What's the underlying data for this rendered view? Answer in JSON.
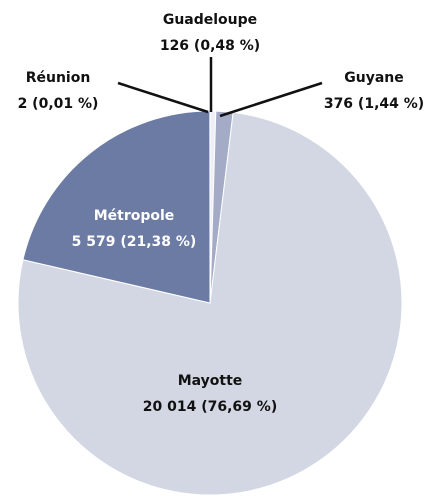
{
  "chart_data": {
    "type": "pie",
    "categories": [
      "Guadeloupe",
      "Guyane",
      "Mayotte",
      "Métropole",
      "Réunion"
    ],
    "values": [
      126,
      376,
      20014,
      5579,
      2
    ],
    "value_labels": [
      "126 (0,48 %)",
      "376 (1,44 %)",
      "20 014 (76,69 %)",
      "5 579 (21,38 %)",
      "2 (0,01 %)"
    ],
    "colors": [
      "#eef0f5",
      "#a4abc6",
      "#d3d7e3",
      "#6b7ba4",
      "#d3d7e3"
    ]
  }
}
